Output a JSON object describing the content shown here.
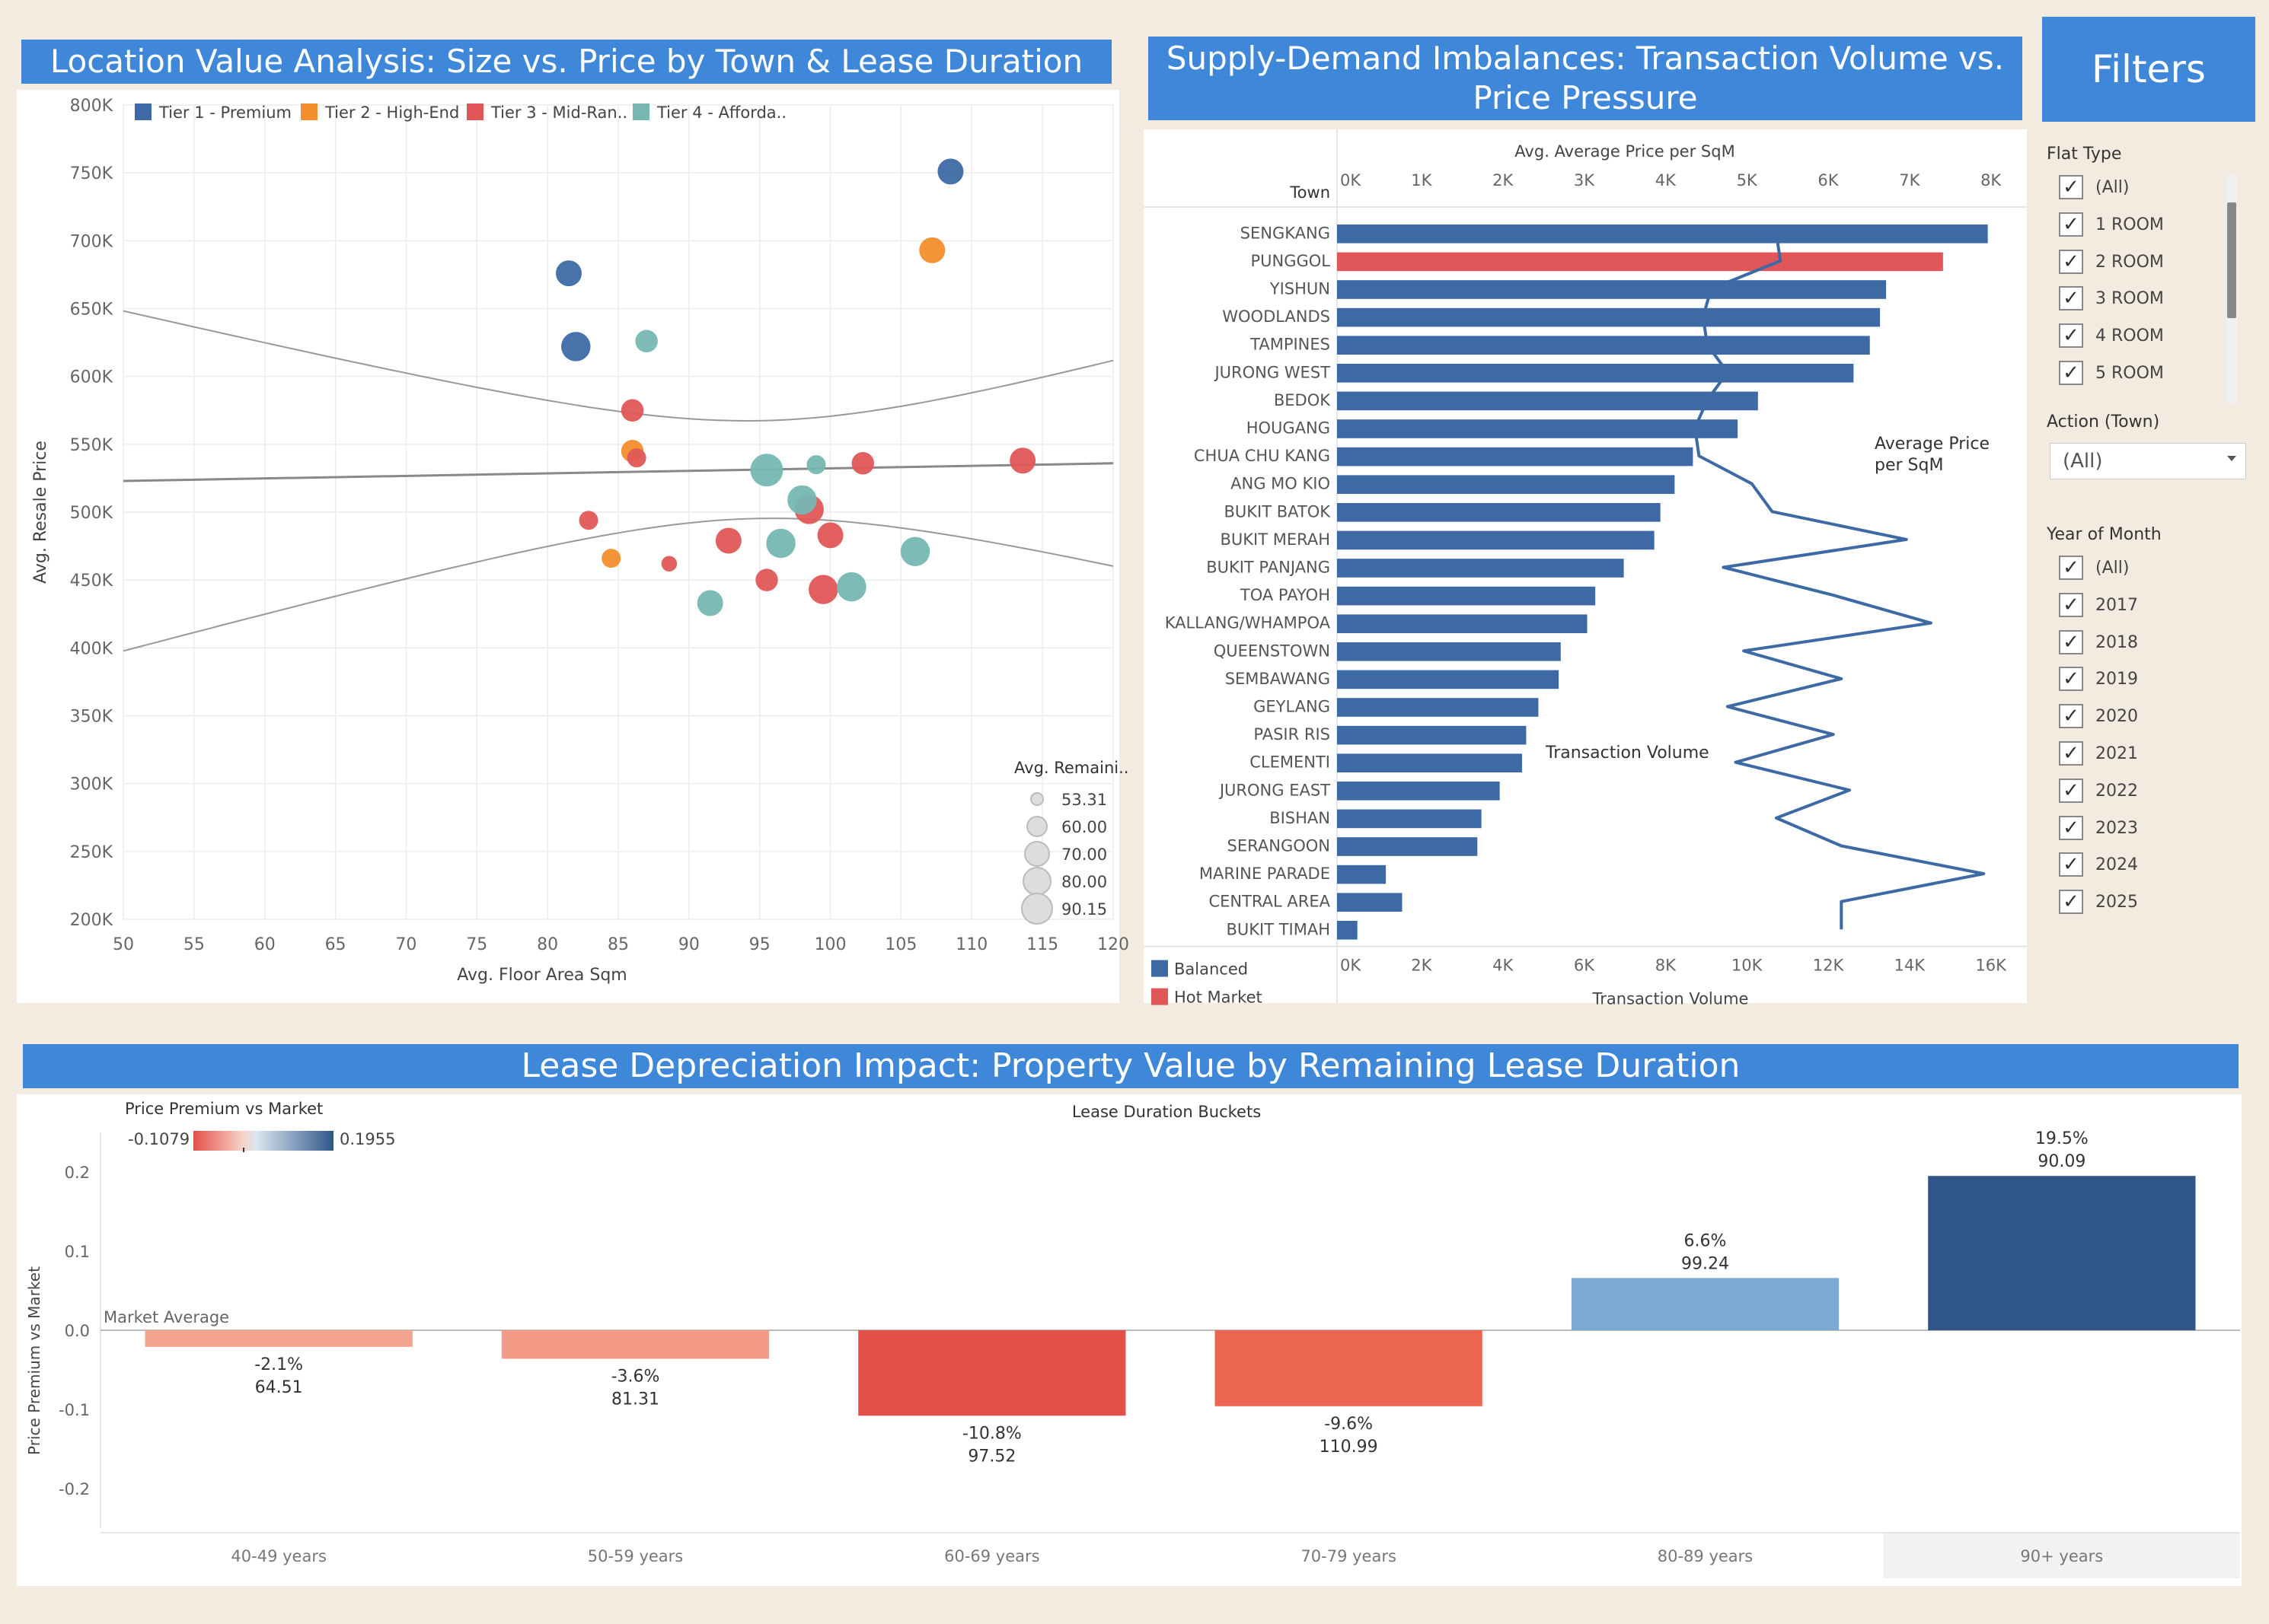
{
  "scatter": {
    "title": "Location Value Analysis: Size vs. Price by Town & Lease Duration",
    "xlabel": "Avg. Floor Area Sqm",
    "ylabel": "Avg. Resale Price",
    "legend": [
      {
        "label": "Tier 1 - Premium",
        "color": "#3d6aa5"
      },
      {
        "label": "Tier 2 - High-End",
        "color": "#f28e2b"
      },
      {
        "label": "Tier 3 - Mid-Ran..",
        "color": "#e15759"
      },
      {
        "label": "Tier 4 - Afforda..",
        "color": "#76b7b2"
      }
    ],
    "size_legend_title": "Avg. Remaini..",
    "size_legend": [
      "53.31",
      "60.00",
      "70.00",
      "80.00",
      "90.15"
    ]
  },
  "bars": {
    "title": "Supply-Demand Imbalances: Transaction Volume vs. Price Pressure",
    "top_axis_title": "Avg. Average Price per SqM",
    "bottom_axis_title": "Transaction Volume",
    "town_header": "Town",
    "line_label": "Average Price per SqM",
    "bar_label": "Transaction Volume",
    "legend": [
      {
        "label": "Balanced",
        "color": "#3d6aa5"
      },
      {
        "label": "Hot Market",
        "color": "#e15759"
      }
    ]
  },
  "lease": {
    "title": "Lease Depreciation Impact: Property Value by Remaining Lease Duration",
    "column_header": "Lease Duration Buckets",
    "ylabel": "Price Premium vs Market",
    "color_legend_title": "Price Premium vs Market",
    "color_min": "-0.1079",
    "color_max": "0.1955",
    "reference_label": "Market Average"
  },
  "filters": {
    "title": "Filters",
    "flat_type_label": "Flat Type",
    "flat_types": [
      "(All)",
      "1 ROOM",
      "2 ROOM",
      "3 ROOM",
      "4 ROOM",
      "5 ROOM"
    ],
    "action_label": "Action (Town)",
    "action_value": "(All)",
    "year_label": "Year of Month",
    "years": [
      "(All)",
      "2017",
      "2018",
      "2019",
      "2020",
      "2021",
      "2022",
      "2023",
      "2024",
      "2025"
    ],
    "check_glyph": "✓"
  },
  "chart_data": [
    {
      "type": "scatter",
      "title": "Location Value Analysis: Size vs. Price by Town & Lease Duration",
      "xlabel": "Avg. Floor Area Sqm",
      "ylabel": "Avg. Resale Price",
      "xlim": [
        50,
        120
      ],
      "ylim": [
        200000,
        800000
      ],
      "x_ticks": [
        "50",
        "55",
        "60",
        "65",
        "70",
        "75",
        "80",
        "85",
        "90",
        "95",
        "100",
        "105",
        "110",
        "115",
        "120"
      ],
      "y_ticks": [
        "200K",
        "250K",
        "300K",
        "350K",
        "400K",
        "450K",
        "500K",
        "550K",
        "600K",
        "650K",
        "700K",
        "750K",
        "800K"
      ],
      "grid": true,
      "legend_position": "top",
      "series": [
        {
          "name": "Tier 1 - Premium",
          "color": "#3d6aa5",
          "points": [
            {
              "x": 108.5,
              "y": 751000,
              "size": 80
            },
            {
              "x": 81.5,
              "y": 676000,
              "size": 80
            },
            {
              "x": 82.0,
              "y": 622000,
              "size": 85
            }
          ]
        },
        {
          "name": "Tier 2 - High-End",
          "color": "#f28e2b",
          "points": [
            {
              "x": 107.2,
              "y": 693000,
              "size": 80
            },
            {
              "x": 86.0,
              "y": 545000,
              "size": 75
            },
            {
              "x": 84.5,
              "y": 466000,
              "size": 70
            }
          ]
        },
        {
          "name": "Tier 3 - Mid-Ran..",
          "color": "#e15759",
          "points": [
            {
              "x": 86.0,
              "y": 575000,
              "size": 75
            },
            {
              "x": 86.3,
              "y": 540000,
              "size": 70
            },
            {
              "x": 82.9,
              "y": 494000,
              "size": 70
            },
            {
              "x": 88.6,
              "y": 462000,
              "size": 65
            },
            {
              "x": 92.8,
              "y": 479000,
              "size": 80
            },
            {
              "x": 95.5,
              "y": 450000,
              "size": 75
            },
            {
              "x": 98.5,
              "y": 502000,
              "size": 85
            },
            {
              "x": 100.0,
              "y": 483000,
              "size": 80
            },
            {
              "x": 99.5,
              "y": 443000,
              "size": 85
            },
            {
              "x": 102.3,
              "y": 536000,
              "size": 75
            },
            {
              "x": 113.6,
              "y": 538000,
              "size": 80
            }
          ]
        },
        {
          "name": "Tier 4 - Afforda..",
          "color": "#76b7b2",
          "points": [
            {
              "x": 87.0,
              "y": 626000,
              "size": 75
            },
            {
              "x": 95.5,
              "y": 531000,
              "size": 90
            },
            {
              "x": 99.0,
              "y": 535000,
              "size": 70
            },
            {
              "x": 98.0,
              "y": 509000,
              "size": 85
            },
            {
              "x": 96.5,
              "y": 477000,
              "size": 85
            },
            {
              "x": 91.5,
              "y": 433000,
              "size": 80
            },
            {
              "x": 101.5,
              "y": 445000,
              "size": 85
            },
            {
              "x": 106.0,
              "y": 471000,
              "size": 85
            }
          ]
        }
      ]
    },
    {
      "type": "bar",
      "orientation": "horizontal",
      "title": "Supply-Demand Imbalances: Transaction Volume vs. Price Pressure",
      "categories": [
        "SENGKANG",
        "PUNGGOL",
        "YISHUN",
        "WOODLANDS",
        "TAMPINES",
        "JURONG WEST",
        "BEDOK",
        "HOUGANG",
        "CHUA CHU KANG",
        "ANG MO KIO",
        "BUKIT BATOK",
        "BUKIT MERAH",
        "BUKIT PANJANG",
        "TOA PAYOH",
        "KALLANG/WHAMPOA",
        "QUEENSTOWN",
        "SEMBAWANG",
        "GEYLANG",
        "PASIR RIS",
        "CLEMENTI",
        "JURONG EAST",
        "BISHAN",
        "SERANGOON",
        "MARINE PARADE",
        "CENTRAL AREA",
        "BUKIT TIMAH"
      ],
      "series": [
        {
          "name": "Transaction Volume",
          "axis": "bottom",
          "values": [
            16000,
            14900,
            13500,
            13350,
            13100,
            12700,
            10350,
            9850,
            8750,
            8300,
            7950,
            7800,
            7050,
            6350,
            6150,
            5500,
            5450,
            4950,
            4650,
            4550,
            4000,
            3550,
            3450,
            1200,
            1600,
            500
          ],
          "status": [
            "Balanced",
            "Hot Market",
            "Balanced",
            "Balanced",
            "Balanced",
            "Balanced",
            "Balanced",
            "Balanced",
            "Balanced",
            "Balanced",
            "Balanced",
            "Balanced",
            "Balanced",
            "Balanced",
            "Balanced",
            "Balanced",
            "Balanced",
            "Balanced",
            "Balanced",
            "Balanced",
            "Balanced",
            "Balanced",
            "Balanced",
            "Balanced",
            "Balanced",
            "Balanced"
          ]
        },
        {
          "name": "Average Price per SqM",
          "axis": "top",
          "type": "line",
          "values": [
            5400,
            5450,
            4600,
            4500,
            4550,
            4800,
            4550,
            4400,
            4450,
            5100,
            5350,
            7000,
            4750,
            6100,
            7300,
            5000,
            6200,
            4800,
            6100,
            4900,
            6300,
            5400,
            6200,
            7950,
            6200,
            6200
          ]
        }
      ],
      "top_axis": {
        "label": "Avg. Average Price per SqM",
        "range": [
          0,
          8200
        ],
        "ticks": [
          "0K",
          "1K",
          "2K",
          "3K",
          "4K",
          "5K",
          "6K",
          "7K",
          "8K"
        ]
      },
      "bottom_axis": {
        "label": "Transaction Volume",
        "range": [
          0,
          16400
        ],
        "ticks": [
          "0K",
          "2K",
          "4K",
          "6K",
          "8K",
          "10K",
          "12K",
          "14K",
          "16K"
        ]
      },
      "ylabel": "Town",
      "legend_position": "bottom-left"
    },
    {
      "type": "bar",
      "title": "Lease Depreciation Impact: Property Value by Remaining Lease Duration",
      "xlabel": "Lease Duration Buckets",
      "ylabel": "Price Premium vs Market",
      "categories": [
        "40-49 years",
        "50-59 years",
        "60-69 years",
        "70-79 years",
        "80-89 years",
        "90+ years"
      ],
      "values": [
        -0.021,
        -0.036,
        -0.108,
        -0.096,
        0.066,
        0.195
      ],
      "labels": [
        [
          "-2.1%",
          "64.51"
        ],
        [
          "-3.6%",
          "81.31"
        ],
        [
          "-10.8%",
          "97.52"
        ],
        [
          "-9.6%",
          "110.99"
        ],
        [
          "6.6%",
          "99.24"
        ],
        [
          "19.5%",
          "90.09"
        ]
      ],
      "colors": [
        "#f4a58f",
        "#f39a86",
        "#e2504a",
        "#ec6550",
        "#7aaad2",
        "#2f5687"
      ],
      "ylim": [
        -0.25,
        0.25
      ],
      "y_ticks": [
        "0.2",
        "0.1",
        "0.0",
        "-0.1",
        "-0.2"
      ],
      "reference_line": {
        "value": 0.0,
        "label": "Market Average"
      },
      "highlighted_category": "90+ years"
    }
  ]
}
